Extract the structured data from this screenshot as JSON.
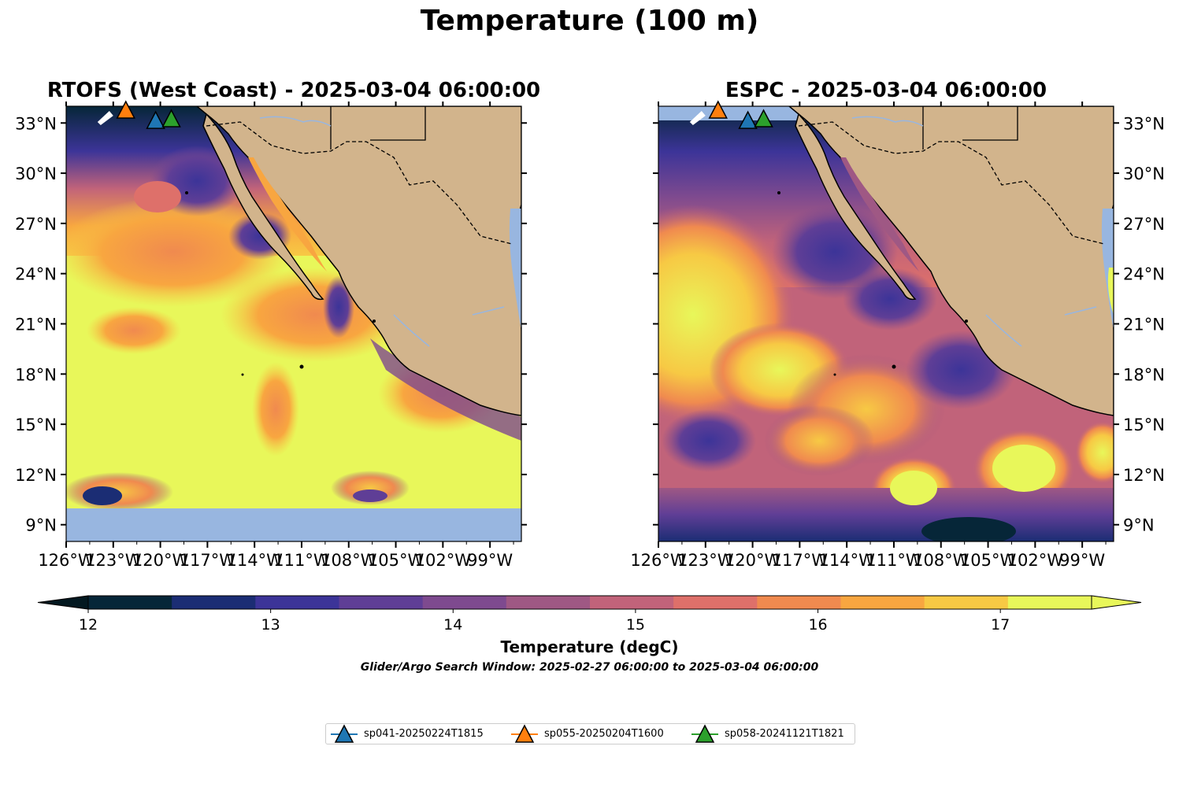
{
  "title": "Temperature (100 m)",
  "panels": [
    {
      "title": "RTOFS (West Coast) - 2025-03-04 06:00:00",
      "model": "RTOFS"
    },
    {
      "title": "ESPC - 2025-03-04 06:00:00",
      "model": "ESPC"
    }
  ],
  "axes": {
    "lon_ticks": [
      "126°W",
      "123°W",
      "120°W",
      "117°W",
      "114°W",
      "111°W",
      "108°W",
      "105°W",
      "102°W",
      "99°W"
    ],
    "lat_ticks": [
      "33°N",
      "30°N",
      "27°N",
      "24°N",
      "21°N",
      "18°N",
      "15°N",
      "12°N",
      "9°N"
    ],
    "lon_range": [
      -126,
      -97
    ],
    "lat_range": [
      8,
      34
    ]
  },
  "colorbar": {
    "label": "Temperature (degC)",
    "ticks": [
      "12",
      "13",
      "14",
      "15",
      "16",
      "17"
    ],
    "min": 12,
    "max": 17.5,
    "step": 0.5,
    "colors": [
      "#062638",
      "#1b2d74",
      "#3c3498",
      "#5f3e96",
      "#7e4a8f",
      "#9f5884",
      "#c1637a",
      "#de706a",
      "#f08a4f",
      "#f8a640",
      "#f7c944",
      "#e8f75a"
    ],
    "under_color": "#031820",
    "over_color": "#e8f75a"
  },
  "colors": {
    "land": "#d2b48c",
    "ocean_nodata": "#98b6e0",
    "river": "#98b6e0"
  },
  "search_window": "Glider/Argo Search Window: 2025-02-27 06:00:00 to 2025-03-04 06:00:00",
  "gliders": [
    {
      "id": "sp041-20250224T1815",
      "color": "#1f77b4",
      "lon": -120.3,
      "lat": 33.1
    },
    {
      "id": "sp055-20250204T1600",
      "color": "#ff7f0e",
      "lon": -122.2,
      "lat": 33.8
    },
    {
      "id": "sp058-20241121T1821",
      "color": "#2ca02c",
      "lon": -119.3,
      "lat": 33.2
    }
  ]
}
